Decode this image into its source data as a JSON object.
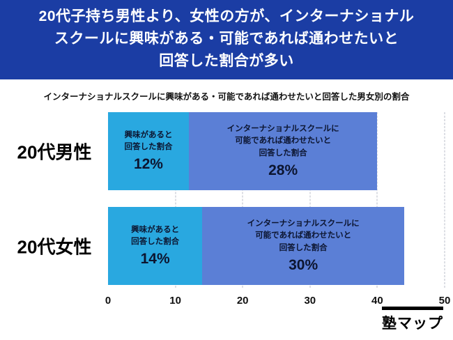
{
  "banner": {
    "title_lines": [
      "20代子持ち男性より、女性の方が、インターナショナル",
      "スクールに興味がある・可能であれば通わせたいと",
      "回答した割合が多い"
    ]
  },
  "subtitle": "インターナショナルスクールに興味がある・可能であれば通わせたいと回答した男女別の割合",
  "chart_data": {
    "type": "bar",
    "orientation": "horizontal",
    "stacked": true,
    "categories": [
      "20代男性",
      "20代女性"
    ],
    "series": [
      {
        "name": "興味があると回答した割合",
        "values": [
          12,
          14
        ],
        "color": "#29a8e0"
      },
      {
        "name": "インターナショナルスクールに可能であれば通わせたいと回答した割合",
        "values": [
          28,
          30
        ],
        "color": "#5b7fd6"
      }
    ],
    "xlim": [
      0,
      50
    ],
    "x_ticks": [
      0,
      10,
      20,
      30,
      40,
      50
    ],
    "grid": "dashed-vertical",
    "legend": "none",
    "title": "インターナショナルスクールに興味がある・可能であれば通わせたいと回答した男女別の割合"
  },
  "rows": [
    {
      "label": "20代男性",
      "seg1": {
        "line1": "興味があると",
        "line2": "回答した割合",
        "value": "12%",
        "pct": 12
      },
      "seg2": {
        "line1": "インターナショナルスクールに",
        "line2": "可能であれば通わせたいと",
        "line3": "回答した割合",
        "value": "28%",
        "pct": 28
      }
    },
    {
      "label": "20代女性",
      "seg1": {
        "line1": "興味があると",
        "line2": "回答した割合",
        "value": "14%",
        "pct": 14
      },
      "seg2": {
        "line1": "インターナショナルスクールに",
        "line2": "可能であれば通わせたいと",
        "line3": "回答した割合",
        "value": "30%",
        "pct": 30
      }
    }
  ],
  "axis": {
    "ticks": [
      "0",
      "10",
      "20",
      "30",
      "40",
      "50"
    ]
  },
  "colors": {
    "banner_bg": "#1b3da4",
    "segment_interest": "#29a8e0",
    "segment_possible": "#5b7fd6"
  },
  "logo": {
    "text": "塾マップ"
  }
}
